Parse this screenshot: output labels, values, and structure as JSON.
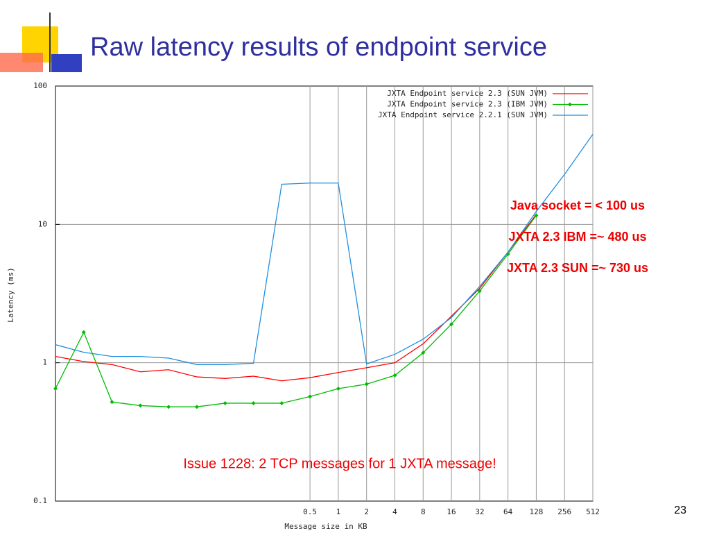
{
  "title": "Raw latency results of endpoint service",
  "page_number": 23,
  "chart_data": {
    "type": "line",
    "x_label": "Message size in KB",
    "y_label": "Latency (ms)",
    "xscale": "log2",
    "yscale": "log",
    "x": [
      0.0009765625,
      0.001953125,
      0.00390625,
      0.0078125,
      0.015625,
      0.03125,
      0.0625,
      0.125,
      0.25,
      0.5,
      1,
      2,
      4,
      8,
      16,
      32,
      64,
      128,
      256,
      512
    ],
    "xlim": [
      0.0009765625,
      512
    ],
    "xticks": [
      0.5,
      1,
      2,
      4,
      8,
      16,
      32,
      64,
      128,
      256,
      512
    ],
    "ylim": [
      0.1,
      100
    ],
    "yticks": [
      0.1,
      1,
      10,
      100
    ],
    "grid": true,
    "legend": "top-right",
    "series": [
      {
        "name": "JXTA Endpoint service 2.3 (SUN JVM)",
        "color": "#ff0000",
        "marker": false,
        "values": [
          1.11,
          1.02,
          0.97,
          0.86,
          0.89,
          0.79,
          0.77,
          0.8,
          0.74,
          0.78,
          0.85,
          0.92,
          1.0,
          1.37,
          2.17,
          3.45,
          6.3,
          11.8,
          null,
          null
        ]
      },
      {
        "name": "JXTA Endpoint service 2.3 (IBM JVM)",
        "color": "#00bb00",
        "marker": true,
        "values": [
          0.65,
          1.66,
          0.52,
          0.49,
          0.48,
          0.48,
          0.51,
          0.51,
          0.51,
          0.57,
          0.65,
          0.7,
          0.81,
          1.18,
          1.9,
          3.3,
          6.1,
          11.6,
          null,
          null
        ]
      },
      {
        "name": "JXTA Endpoint service 2.2.1 (SUN JVM)",
        "color": "#1e90e0",
        "marker": false,
        "values": [
          1.35,
          1.19,
          1.11,
          1.11,
          1.08,
          0.97,
          0.97,
          0.99,
          19.5,
          19.9,
          19.9,
          0.98,
          1.15,
          1.48,
          2.12,
          3.56,
          6.3,
          12.4,
          23,
          44.8
        ]
      }
    ],
    "annotations": [
      "Java socket = < 100 us",
      "JXTA 2.3 IBM =~ 480 us",
      "JXTA 2.3 SUN =~ 730 us",
      "Issue 1228: 2 TCP messages for 1 JXTA message!"
    ]
  }
}
